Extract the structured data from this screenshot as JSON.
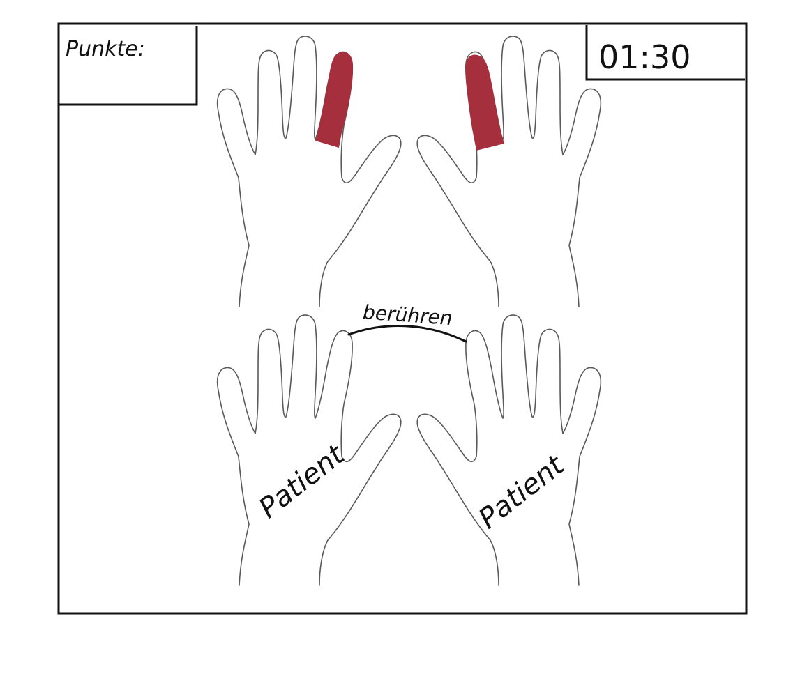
{
  "score": {
    "label": "Punkte:"
  },
  "timer": {
    "value": "01:30"
  },
  "touch_hint": {
    "label": "berühren"
  },
  "hands": {
    "player_left": {
      "highlighted_finger": "index"
    },
    "player_right": {
      "highlighted_finger": "index"
    },
    "patient_left": {
      "label": "Patient"
    },
    "patient_right": {
      "label": "Patient"
    }
  },
  "colors": {
    "finger_highlight": "#a52f3d",
    "frame": "#111111",
    "outline": "#5a5a5a"
  }
}
